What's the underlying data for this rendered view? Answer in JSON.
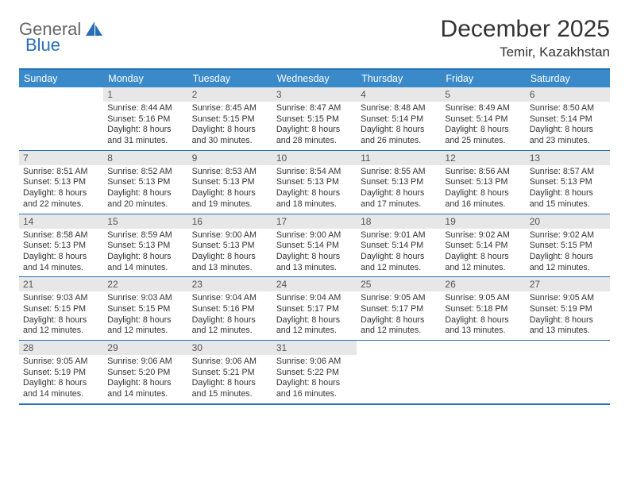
{
  "brand": {
    "part1": "General",
    "part2": "Blue"
  },
  "title": "December 2025",
  "location": "Temir, Kazakhstan",
  "colors": {
    "header_bg": "#3a8ac9",
    "border": "#2a6fb5",
    "daynum_bg": "#e7e7e7",
    "text": "#333333",
    "brand_grey": "#666666",
    "brand_blue": "#2a6fb5",
    "page_bg": "#ffffff"
  },
  "typography": {
    "title_fontsize": 30,
    "location_fontsize": 17,
    "dow_fontsize": 12.5,
    "daynum_fontsize": 12,
    "body_fontsize": 10.7
  },
  "days_of_week": [
    "Sunday",
    "Monday",
    "Tuesday",
    "Wednesday",
    "Thursday",
    "Friday",
    "Saturday"
  ],
  "weeks": [
    [
      {
        "empty": true
      },
      {
        "n": "1",
        "sr": "Sunrise: 8:44 AM",
        "ss": "Sunset: 5:16 PM",
        "d1": "Daylight: 8 hours",
        "d2": "and 31 minutes."
      },
      {
        "n": "2",
        "sr": "Sunrise: 8:45 AM",
        "ss": "Sunset: 5:15 PM",
        "d1": "Daylight: 8 hours",
        "d2": "and 30 minutes."
      },
      {
        "n": "3",
        "sr": "Sunrise: 8:47 AM",
        "ss": "Sunset: 5:15 PM",
        "d1": "Daylight: 8 hours",
        "d2": "and 28 minutes."
      },
      {
        "n": "4",
        "sr": "Sunrise: 8:48 AM",
        "ss": "Sunset: 5:14 PM",
        "d1": "Daylight: 8 hours",
        "d2": "and 26 minutes."
      },
      {
        "n": "5",
        "sr": "Sunrise: 8:49 AM",
        "ss": "Sunset: 5:14 PM",
        "d1": "Daylight: 8 hours",
        "d2": "and 25 minutes."
      },
      {
        "n": "6",
        "sr": "Sunrise: 8:50 AM",
        "ss": "Sunset: 5:14 PM",
        "d1": "Daylight: 8 hours",
        "d2": "and 23 minutes."
      }
    ],
    [
      {
        "n": "7",
        "sr": "Sunrise: 8:51 AM",
        "ss": "Sunset: 5:13 PM",
        "d1": "Daylight: 8 hours",
        "d2": "and 22 minutes."
      },
      {
        "n": "8",
        "sr": "Sunrise: 8:52 AM",
        "ss": "Sunset: 5:13 PM",
        "d1": "Daylight: 8 hours",
        "d2": "and 20 minutes."
      },
      {
        "n": "9",
        "sr": "Sunrise: 8:53 AM",
        "ss": "Sunset: 5:13 PM",
        "d1": "Daylight: 8 hours",
        "d2": "and 19 minutes."
      },
      {
        "n": "10",
        "sr": "Sunrise: 8:54 AM",
        "ss": "Sunset: 5:13 PM",
        "d1": "Daylight: 8 hours",
        "d2": "and 18 minutes."
      },
      {
        "n": "11",
        "sr": "Sunrise: 8:55 AM",
        "ss": "Sunset: 5:13 PM",
        "d1": "Daylight: 8 hours",
        "d2": "and 17 minutes."
      },
      {
        "n": "12",
        "sr": "Sunrise: 8:56 AM",
        "ss": "Sunset: 5:13 PM",
        "d1": "Daylight: 8 hours",
        "d2": "and 16 minutes."
      },
      {
        "n": "13",
        "sr": "Sunrise: 8:57 AM",
        "ss": "Sunset: 5:13 PM",
        "d1": "Daylight: 8 hours",
        "d2": "and 15 minutes."
      }
    ],
    [
      {
        "n": "14",
        "sr": "Sunrise: 8:58 AM",
        "ss": "Sunset: 5:13 PM",
        "d1": "Daylight: 8 hours",
        "d2": "and 14 minutes."
      },
      {
        "n": "15",
        "sr": "Sunrise: 8:59 AM",
        "ss": "Sunset: 5:13 PM",
        "d1": "Daylight: 8 hours",
        "d2": "and 14 minutes."
      },
      {
        "n": "16",
        "sr": "Sunrise: 9:00 AM",
        "ss": "Sunset: 5:13 PM",
        "d1": "Daylight: 8 hours",
        "d2": "and 13 minutes."
      },
      {
        "n": "17",
        "sr": "Sunrise: 9:00 AM",
        "ss": "Sunset: 5:14 PM",
        "d1": "Daylight: 8 hours",
        "d2": "and 13 minutes."
      },
      {
        "n": "18",
        "sr": "Sunrise: 9:01 AM",
        "ss": "Sunset: 5:14 PM",
        "d1": "Daylight: 8 hours",
        "d2": "and 12 minutes."
      },
      {
        "n": "19",
        "sr": "Sunrise: 9:02 AM",
        "ss": "Sunset: 5:14 PM",
        "d1": "Daylight: 8 hours",
        "d2": "and 12 minutes."
      },
      {
        "n": "20",
        "sr": "Sunrise: 9:02 AM",
        "ss": "Sunset: 5:15 PM",
        "d1": "Daylight: 8 hours",
        "d2": "and 12 minutes."
      }
    ],
    [
      {
        "n": "21",
        "sr": "Sunrise: 9:03 AM",
        "ss": "Sunset: 5:15 PM",
        "d1": "Daylight: 8 hours",
        "d2": "and 12 minutes."
      },
      {
        "n": "22",
        "sr": "Sunrise: 9:03 AM",
        "ss": "Sunset: 5:15 PM",
        "d1": "Daylight: 8 hours",
        "d2": "and 12 minutes."
      },
      {
        "n": "23",
        "sr": "Sunrise: 9:04 AM",
        "ss": "Sunset: 5:16 PM",
        "d1": "Daylight: 8 hours",
        "d2": "and 12 minutes."
      },
      {
        "n": "24",
        "sr": "Sunrise: 9:04 AM",
        "ss": "Sunset: 5:17 PM",
        "d1": "Daylight: 8 hours",
        "d2": "and 12 minutes."
      },
      {
        "n": "25",
        "sr": "Sunrise: 9:05 AM",
        "ss": "Sunset: 5:17 PM",
        "d1": "Daylight: 8 hours",
        "d2": "and 12 minutes."
      },
      {
        "n": "26",
        "sr": "Sunrise: 9:05 AM",
        "ss": "Sunset: 5:18 PM",
        "d1": "Daylight: 8 hours",
        "d2": "and 13 minutes."
      },
      {
        "n": "27",
        "sr": "Sunrise: 9:05 AM",
        "ss": "Sunset: 5:19 PM",
        "d1": "Daylight: 8 hours",
        "d2": "and 13 minutes."
      }
    ],
    [
      {
        "n": "28",
        "sr": "Sunrise: 9:05 AM",
        "ss": "Sunset: 5:19 PM",
        "d1": "Daylight: 8 hours",
        "d2": "and 14 minutes."
      },
      {
        "n": "29",
        "sr": "Sunrise: 9:06 AM",
        "ss": "Sunset: 5:20 PM",
        "d1": "Daylight: 8 hours",
        "d2": "and 14 minutes."
      },
      {
        "n": "30",
        "sr": "Sunrise: 9:06 AM",
        "ss": "Sunset: 5:21 PM",
        "d1": "Daylight: 8 hours",
        "d2": "and 15 minutes."
      },
      {
        "n": "31",
        "sr": "Sunrise: 9:06 AM",
        "ss": "Sunset: 5:22 PM",
        "d1": "Daylight: 8 hours",
        "d2": "and 16 minutes."
      },
      {
        "empty": true
      },
      {
        "empty": true
      },
      {
        "empty": true
      }
    ]
  ]
}
